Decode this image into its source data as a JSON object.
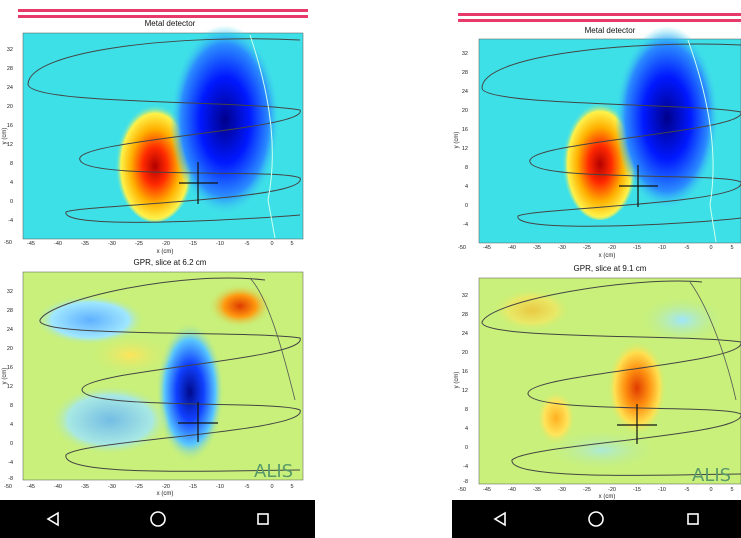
{
  "screens": [
    {
      "top_plot": {
        "title": "Metal detector"
      },
      "bottom_plot": {
        "title": "GPR, slice at 6.2 cm"
      },
      "watermark": "ALIS"
    },
    {
      "top_plot": {
        "title": "Metal detector"
      },
      "bottom_plot": {
        "title": "GPR, slice at 9.1 cm"
      },
      "watermark": "ALIS"
    }
  ],
  "axes": {
    "xlabel": "x (cm)",
    "ylabel": "y (cm)",
    "x_ticks": [
      "-50",
      "-45",
      "-40",
      "-35",
      "-30",
      "-25",
      "-20",
      "-15",
      "-10",
      "-5",
      "0",
      "5"
    ],
    "y_ticks": [
      "32",
      "28",
      "24",
      "20",
      "16",
      "12",
      "8",
      "4",
      "0",
      "-4",
      "-8"
    ]
  },
  "navbar": {
    "back_icon": "back-triangle-icon",
    "home_icon": "home-circle-icon",
    "recents_icon": "recents-square-icon"
  },
  "colors": {
    "header_line": "#e83a6a",
    "heatmap_background": "#3ee0e8",
    "navbar": "#000000"
  }
}
